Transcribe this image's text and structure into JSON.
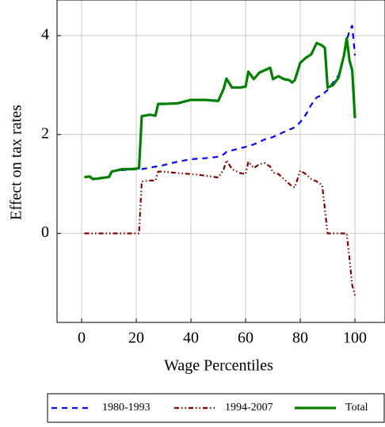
{
  "chart_data": {
    "type": "line",
    "xlabel": "Wage Percentiles",
    "ylabel": "Effect on tax rates",
    "x": [
      1,
      3,
      4,
      6,
      10,
      11,
      15,
      18,
      20,
      21,
      22,
      25,
      27,
      28,
      30,
      35,
      40,
      45,
      50,
      52,
      53,
      55,
      58,
      60,
      61,
      63,
      65,
      67,
      69,
      70,
      72,
      74,
      76,
      77,
      78,
      80,
      82,
      84,
      86,
      88,
      89,
      90,
      92,
      94,
      96,
      97,
      98,
      99,
      100
    ],
    "series": [
      {
        "name": "1980-1993",
        "color": "#0000ff",
        "style": "dashed",
        "values": [
          1.14,
          1.15,
          1.1,
          1.11,
          1.14,
          1.25,
          1.28,
          1.29,
          1.3,
          1.3,
          1.3,
          1.33,
          1.35,
          1.36,
          1.38,
          1.45,
          1.5,
          1.52,
          1.55,
          1.6,
          1.65,
          1.68,
          1.72,
          1.75,
          1.77,
          1.8,
          1.85,
          1.9,
          1.93,
          1.95,
          2.0,
          2.05,
          2.1,
          2.12,
          2.15,
          2.25,
          2.4,
          2.6,
          2.75,
          2.8,
          2.85,
          2.9,
          3.05,
          3.2,
          3.6,
          3.9,
          4.1,
          4.2,
          3.6
        ]
      },
      {
        "name": "1994-2007",
        "color": "#800000",
        "style": "dash-dot-dot",
        "values": [
          0,
          0,
          0,
          0,
          0,
          0,
          0,
          0,
          0,
          0,
          1.05,
          1.07,
          1.07,
          1.25,
          1.25,
          1.22,
          1.2,
          1.17,
          1.13,
          1.3,
          1.48,
          1.3,
          1.22,
          1.2,
          1.45,
          1.32,
          1.4,
          1.42,
          1.35,
          1.23,
          1.2,
          1.1,
          1.0,
          0.95,
          0.93,
          1.27,
          1.2,
          1.1,
          1.05,
          0.98,
          0.5,
          0,
          0,
          0,
          0,
          0,
          -0.5,
          -1.05,
          -1.25
        ]
      },
      {
        "name": "Total",
        "color": "#008000",
        "style": "solid",
        "values": [
          1.14,
          1.15,
          1.1,
          1.11,
          1.14,
          1.25,
          1.3,
          1.3,
          1.31,
          1.32,
          2.37,
          2.4,
          2.38,
          2.62,
          2.62,
          2.63,
          2.7,
          2.7,
          2.68,
          2.93,
          3.13,
          2.95,
          2.95,
          2.97,
          3.27,
          3.12,
          3.25,
          3.3,
          3.35,
          3.12,
          3.18,
          3.12,
          3.1,
          3.05,
          3.1,
          3.45,
          3.55,
          3.62,
          3.85,
          3.8,
          3.75,
          2.95,
          3.0,
          3.15,
          3.6,
          3.95,
          3.5,
          3.3,
          2.33
        ]
      }
    ],
    "xlim": [
      -9,
      111
    ],
    "ylim": [
      -1.8,
      4.72
    ],
    "xticks": [
      0,
      20,
      40,
      60,
      80,
      100
    ],
    "yticks": [
      0,
      2,
      4
    ],
    "grid": true,
    "legend": "bottom"
  }
}
